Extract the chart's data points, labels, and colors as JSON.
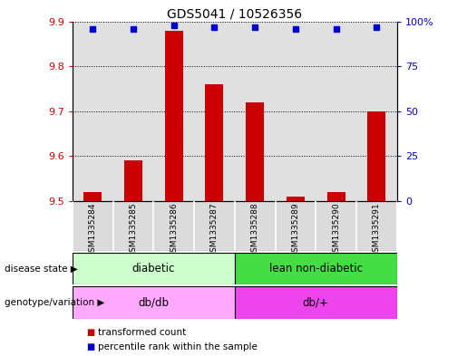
{
  "title": "GDS5041 / 10526356",
  "samples": [
    "GSM1335284",
    "GSM1335285",
    "GSM1335286",
    "GSM1335287",
    "GSM1335288",
    "GSM1335289",
    "GSM1335290",
    "GSM1335291"
  ],
  "transformed_counts": [
    9.52,
    9.59,
    9.88,
    9.76,
    9.72,
    9.51,
    9.52,
    9.7
  ],
  "percentile_ranks": [
    96,
    96,
    98,
    97,
    97,
    96,
    96,
    97
  ],
  "ylim_left": [
    9.5,
    9.9
  ],
  "ylim_right": [
    0,
    100
  ],
  "yticks_left": [
    9.5,
    9.6,
    9.7,
    9.8,
    9.9
  ],
  "yticks_right": [
    0,
    25,
    50,
    75,
    100
  ],
  "bar_color": "#cc0000",
  "dot_color": "#0000cc",
  "bar_baseline": 9.5,
  "col_bg_color": "#cccccc",
  "disease_state_groups": [
    {
      "label": "diabetic",
      "start": 0,
      "end": 3,
      "color": "#ccffcc"
    },
    {
      "label": "lean non-diabetic",
      "start": 4,
      "end": 7,
      "color": "#44dd44"
    }
  ],
  "genotype_groups": [
    {
      "label": "db/db",
      "start": 0,
      "end": 3,
      "color": "#ffaaff"
    },
    {
      "label": "db/+",
      "start": 4,
      "end": 7,
      "color": "#ee44ee"
    }
  ],
  "disease_state_label": "disease state",
  "genotype_label": "genotype/variation",
  "legend_items": [
    {
      "label": "transformed count",
      "color": "#cc0000"
    },
    {
      "label": "percentile rank within the sample",
      "color": "#0000cc"
    }
  ]
}
